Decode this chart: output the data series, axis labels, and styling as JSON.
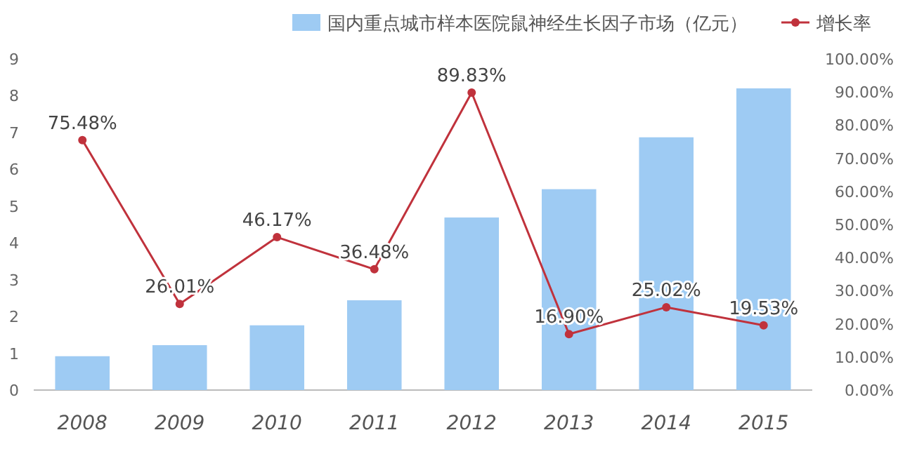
{
  "chart_data": {
    "type": "bar",
    "categories": [
      "2008",
      "2009",
      "2010",
      "2011",
      "2012",
      "2013",
      "2014",
      "2015"
    ],
    "series": [
      {
        "name": "国内重点城市样本医院鼠神经生长因子市场（亿元）",
        "color": "#9ecbf3",
        "values": [
          0.92,
          1.22,
          1.76,
          2.44,
          4.69,
          5.46,
          6.87,
          8.2
        ]
      },
      {
        "name": "增长率",
        "type": "line",
        "axis": "y2",
        "color": "#c0323c",
        "values": [
          75.48,
          26.01,
          46.17,
          36.48,
          89.83,
          16.9,
          25.02,
          19.53
        ],
        "value_labels": [
          "75.48%",
          "26.01%",
          "46.17%",
          "36.48%",
          "89.83%",
          "16.90%",
          "25.02%",
          "19.53%"
        ]
      }
    ],
    "marker": "circle",
    "ylim": [
      0,
      9
    ],
    "yticks": [
      0,
      1,
      2,
      3,
      4,
      5,
      6,
      7,
      8,
      9
    ],
    "y2lim": [
      0,
      100
    ],
    "y2ticks": [
      {
        "value": 0,
        "label": "0.00%"
      },
      {
        "value": 10,
        "label": "10.00%"
      },
      {
        "value": 20,
        "label": "20.00%"
      },
      {
        "value": 30,
        "label": "30.00%"
      },
      {
        "value": 40,
        "label": "40.00%"
      },
      {
        "value": 50,
        "label": "50.00%"
      },
      {
        "value": 60,
        "label": "60.00%"
      },
      {
        "value": 70,
        "label": "70.00%"
      },
      {
        "value": 80,
        "label": "80.00%"
      },
      {
        "value": 90,
        "label": "90.00%"
      },
      {
        "value": 100,
        "label": "100.00%"
      }
    ],
    "legend": "top",
    "grid": false
  }
}
